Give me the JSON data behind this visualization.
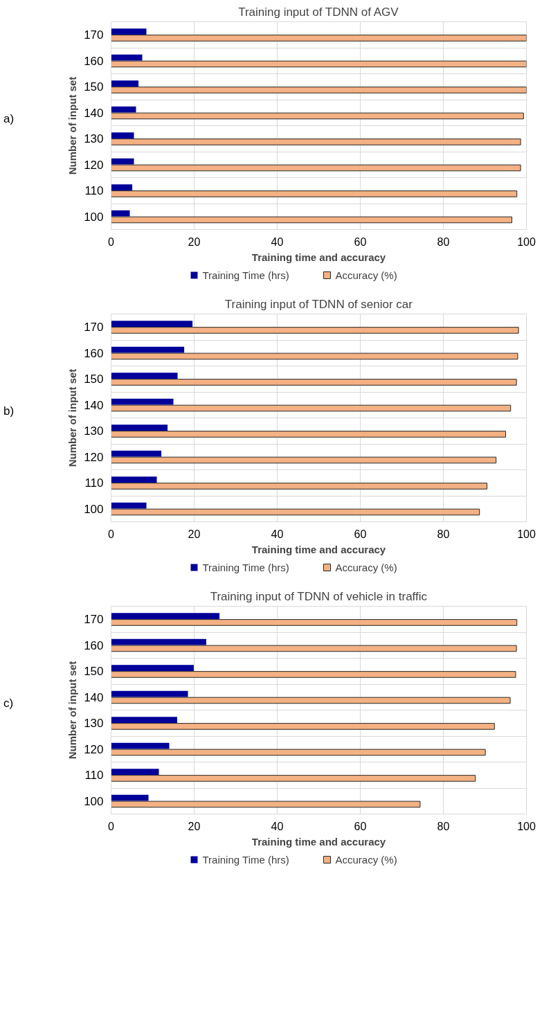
{
  "chart_data": [
    {
      "type": "bar",
      "orientation": "horizontal",
      "title": "Training input of TDNN of AGV",
      "xlabel": "Training time and accuracy",
      "ylabel": "Number of input set",
      "annotations": [
        "a)"
      ],
      "categories": [
        "170",
        "160",
        "150",
        "140",
        "130",
        "120",
        "110",
        "100"
      ],
      "xlim": [
        0,
        100
      ],
      "xticks": [
        0,
        20,
        40,
        60,
        80,
        100
      ],
      "grid": true,
      "legend": "bottom",
      "series": [
        {
          "name": "Training Time (hrs)",
          "color": "#000099",
          "values": [
            8.5,
            7.5,
            6.6,
            6.0,
            5.5,
            5.5,
            5.1,
            4.5
          ]
        },
        {
          "name": "Accuracy (%)",
          "color": "#f4b183",
          "values": [
            100,
            100,
            100,
            99.3,
            98.6,
            98.6,
            97.7,
            96.5
          ]
        }
      ]
    },
    {
      "type": "bar",
      "orientation": "horizontal",
      "title": "Training input of TDNN of senior car",
      "xlabel": "Training time and accuracy",
      "ylabel": "Number of input set",
      "annotations": [
        "b)"
      ],
      "categories": [
        "170",
        "160",
        "150",
        "140",
        "130",
        "120",
        "110",
        "100"
      ],
      "xlim": [
        0,
        100
      ],
      "xticks": [
        0,
        20,
        40,
        60,
        80,
        100
      ],
      "grid": true,
      "legend": "bottom",
      "series": [
        {
          "name": "Training Time (hrs)",
          "color": "#000099",
          "values": [
            19.6,
            17.6,
            16.0,
            15.0,
            13.6,
            12.1,
            11.0,
            8.5
          ]
        },
        {
          "name": "Accuracy (%)",
          "color": "#f4b183",
          "values": [
            98.1,
            97.9,
            97.6,
            96.2,
            95.0,
            92.7,
            90.5,
            88.7
          ]
        }
      ]
    },
    {
      "type": "bar",
      "orientation": "horizontal",
      "title": "Training input of TDNN of vehicle in traffic",
      "xlabel": "Training time and accuracy",
      "ylabel": "Number of input set",
      "annotations": [
        "c)"
      ],
      "categories": [
        "170",
        "160",
        "150",
        "140",
        "130",
        "120",
        "110",
        "100"
      ],
      "xlim": [
        0,
        100
      ],
      "xticks": [
        0,
        20,
        40,
        60,
        80,
        100
      ],
      "grid": true,
      "legend": "bottom",
      "series": [
        {
          "name": "Training Time (hrs)",
          "color": "#000099",
          "values": [
            26.1,
            22.9,
            19.9,
            18.5,
            15.9,
            14.0,
            11.5,
            9.0
          ]
        },
        {
          "name": "Accuracy (%)",
          "color": "#f4b183",
          "values": [
            97.7,
            97.6,
            97.4,
            96.1,
            92.3,
            90.1,
            87.7,
            74.4
          ]
        }
      ]
    }
  ]
}
